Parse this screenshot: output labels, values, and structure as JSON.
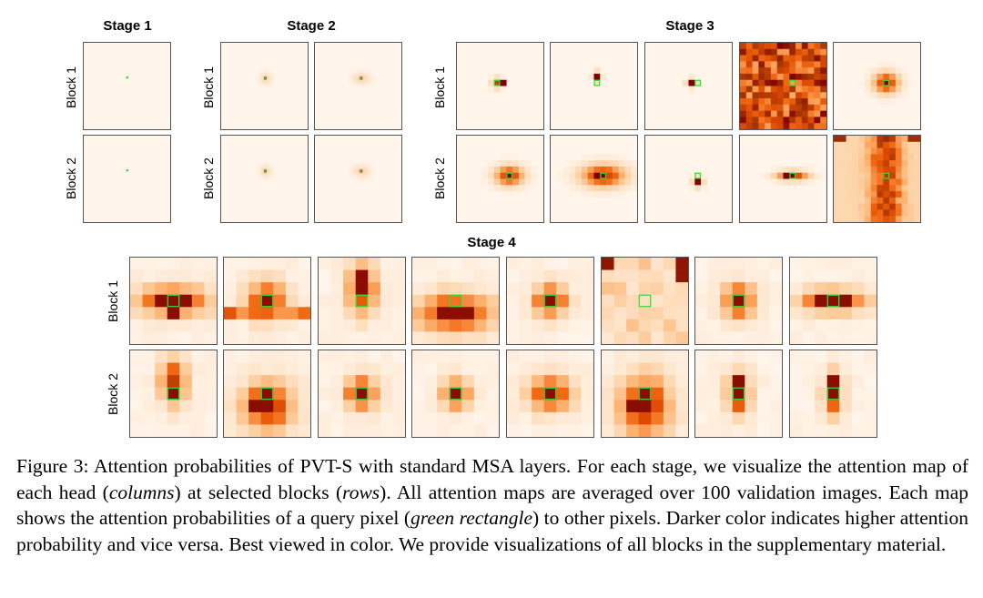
{
  "stage_titles": {
    "stage1": "Stage 1",
    "stage2": "Stage 2",
    "stage3": "Stage 3",
    "stage4": "Stage 4"
  },
  "row_labels": {
    "block1": "Block 1",
    "block2": "Block 2"
  },
  "caption": {
    "p1": "Figure 3: Attention probabilities of PVT-S with standard MSA layers. For each stage, we visualize the attention map of each head (",
    "e1": "columns",
    "p2": ") at selected blocks (",
    "e2": "rows",
    "p3": "). All attention maps are averaged over 100 validation images. Each map shows the attention probabilities of a query pixel (",
    "e3": "green rectangle",
    "p4": ") to other pixels. Darker color indicates higher attention probability and vice versa. Best viewed in color. We provide visualizations of all blocks in the supplementary material."
  },
  "colors": {
    "low": "#fff5eb",
    "high": "#7f0000",
    "query_marker": "#33dd33"
  }
}
